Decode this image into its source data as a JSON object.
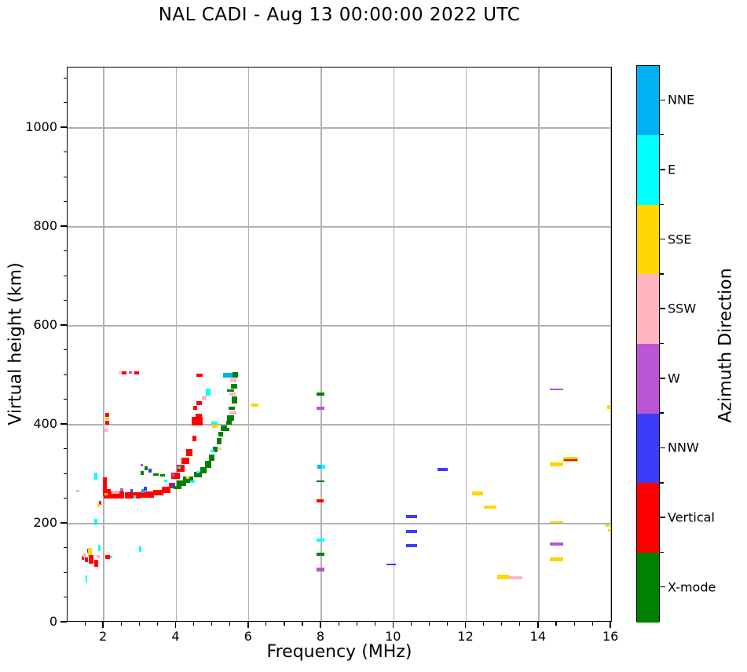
{
  "chart_data": {
    "type": "scatter",
    "title": "NAL CADI - Aug 13 00:00:00 2022 UTC",
    "xlabel": "Frequency (MHz)",
    "ylabel": "Virtual height (km)",
    "xlim": [
      1,
      16.04
    ],
    "ylim": [
      0,
      1125
    ],
    "x_major_ticks": [
      2,
      4,
      6,
      8,
      10,
      12,
      14,
      16
    ],
    "x_minor_step": 0.5,
    "y_major_ticks": [
      0,
      200,
      400,
      600,
      800,
      1000
    ],
    "y_minor_step": 50,
    "grid": true,
    "grid_color": "#b2b2b2",
    "colorbar": {
      "label": "Azimuth Direction",
      "categories_top_to_bottom": [
        {
          "key": "B",
          "name": "NNE",
          "color": "#00B2F2"
        },
        {
          "key": "C",
          "name": "E",
          "color": "#00FFFF"
        },
        {
          "key": "G",
          "name": "SSE",
          "color": "#FFD700"
        },
        {
          "key": "P",
          "name": "SSW",
          "color": "#FFB6C1"
        },
        {
          "key": "W",
          "name": "W",
          "color": "#BA55D3"
        },
        {
          "key": "N",
          "name": "NNW",
          "color": "#3C3CF8"
        },
        {
          "key": "V",
          "name": "Vertical",
          "color": "#FF0000"
        },
        {
          "key": "X",
          "name": "X-mode",
          "color": "#008000"
        }
      ]
    },
    "point_format": [
      "frequency_MHz_center",
      "virtual_height_km_center",
      "direction_key",
      "width_MHz",
      "thickness_km"
    ],
    "points": [
      [
        1.28,
        266,
        "P",
        0.1,
        6
      ],
      [
        1.42,
        131,
        "V",
        0.07,
        7
      ],
      [
        1.46,
        135,
        "P",
        0.09,
        8
      ],
      [
        1.52,
        127,
        "V",
        0.08,
        11
      ],
      [
        1.57,
        145,
        "N",
        0.07,
        8
      ],
      [
        1.62,
        143,
        "G",
        0.11,
        16
      ],
      [
        1.66,
        128,
        "V",
        0.13,
        18
      ],
      [
        1.8,
        120,
        "V",
        0.11,
        14
      ],
      [
        1.85,
        133,
        "P",
        0.09,
        6
      ],
      [
        1.88,
        151,
        "C",
        0.06,
        13
      ],
      [
        2.1,
        133,
        "V",
        0.12,
        8
      ],
      [
        2.21,
        133,
        "C",
        0.06,
        5
      ],
      [
        1.52,
        88,
        "C",
        0.06,
        14
      ],
      [
        1.9,
        242,
        "V",
        0.08,
        9
      ],
      [
        1.86,
        236,
        "G",
        0.07,
        6
      ],
      [
        3.0,
        149,
        "C",
        0.07,
        11
      ],
      [
        1.78,
        296,
        "C",
        0.07,
        14
      ],
      [
        1.78,
        203,
        "C",
        0.07,
        12
      ],
      [
        2.03,
        274,
        "V",
        0.1,
        38
      ],
      [
        2.1,
        262,
        "V",
        0.18,
        16
      ],
      [
        2.28,
        258,
        "V",
        0.55,
        15
      ],
      [
        2.8,
        257,
        "V",
        0.45,
        13
      ],
      [
        3.2,
        259,
        "V",
        0.35,
        12
      ],
      [
        3.5,
        263,
        "V",
        0.28,
        12
      ],
      [
        3.72,
        268,
        "V",
        0.22,
        12
      ],
      [
        3.88,
        277,
        "V",
        0.18,
        12
      ],
      [
        2.06,
        259,
        "G",
        0.07,
        5
      ],
      [
        2.33,
        264,
        "P",
        0.22,
        6
      ],
      [
        2.5,
        268,
        "W",
        0.08,
        7
      ],
      [
        2.77,
        266,
        "N",
        0.07,
        7
      ],
      [
        2.86,
        254,
        "C",
        0.07,
        6
      ],
      [
        3.08,
        266,
        "B",
        0.08,
        7
      ],
      [
        3.15,
        271,
        "N",
        0.08,
        7
      ],
      [
        3.97,
        297,
        "V",
        0.24,
        13
      ],
      [
        4.12,
        312,
        "V",
        0.22,
        14
      ],
      [
        4.25,
        327,
        "V",
        0.2,
        13
      ],
      [
        4.36,
        344,
        "V",
        0.18,
        14
      ],
      [
        4.5,
        372,
        "V",
        0.13,
        11
      ],
      [
        4.57,
        407,
        "V",
        0.3,
        17
      ],
      [
        4.62,
        418,
        "V",
        0.18,
        8
      ],
      [
        4.52,
        434,
        "V",
        0.1,
        9
      ],
      [
        4.63,
        443,
        "V",
        0.14,
        8
      ],
      [
        4.64,
        500,
        "V",
        0.16,
        7
      ],
      [
        4.77,
        454,
        "P",
        0.14,
        10
      ],
      [
        4.89,
        466,
        "C",
        0.13,
        15
      ],
      [
        4.07,
        313,
        "C",
        0.09,
        5
      ],
      [
        3.91,
        299,
        "W",
        0.07,
        6
      ],
      [
        3.9,
        278,
        "N",
        0.1,
        9
      ],
      [
        2.45,
        506,
        "P",
        0.1,
        5
      ],
      [
        2.55,
        505,
        "V",
        0.13,
        6
      ],
      [
        2.73,
        505,
        "W",
        0.08,
        5
      ],
      [
        2.91,
        505,
        "V",
        0.14,
        6
      ],
      [
        2.1,
        420,
        "V",
        0.1,
        8
      ],
      [
        2.1,
        412,
        "G",
        0.1,
        6
      ],
      [
        2.1,
        404,
        "V",
        0.1,
        7
      ],
      [
        2.07,
        389,
        "P",
        0.1,
        5
      ],
      [
        3.05,
        303,
        "X",
        0.09,
        8
      ],
      [
        3.16,
        312,
        "X",
        0.09,
        8
      ],
      [
        3.05,
        318,
        "W",
        0.08,
        5
      ],
      [
        3.27,
        307,
        "N",
        0.09,
        9
      ],
      [
        3.44,
        299,
        "X",
        0.16,
        5
      ],
      [
        3.62,
        297,
        "X",
        0.13,
        5
      ],
      [
        3.71,
        286,
        "C",
        0.07,
        5
      ],
      [
        4.03,
        273,
        "X",
        0.22,
        7
      ],
      [
        4.14,
        282,
        "X",
        0.26,
        10
      ],
      [
        4.33,
        289,
        "X",
        0.28,
        12
      ],
      [
        4.32,
        293,
        "G",
        0.09,
        5
      ],
      [
        4.45,
        285,
        "C",
        0.13,
        5
      ],
      [
        4.6,
        299,
        "X",
        0.22,
        12
      ],
      [
        4.6,
        304,
        "C",
        0.1,
        5
      ],
      [
        4.75,
        308,
        "X",
        0.18,
        12
      ],
      [
        4.88,
        320,
        "X",
        0.16,
        13
      ],
      [
        4.98,
        334,
        "X",
        0.15,
        13
      ],
      [
        5.08,
        350,
        "X",
        0.14,
        12
      ],
      [
        5.0,
        347,
        "C",
        0.09,
        5
      ],
      [
        5.2,
        351,
        "P",
        0.09,
        5
      ],
      [
        5.18,
        367,
        "X",
        0.14,
        13
      ],
      [
        5.23,
        381,
        "X",
        0.14,
        11
      ],
      [
        5.32,
        393,
        "X",
        0.18,
        11
      ],
      [
        5.38,
        391,
        "X",
        0.15,
        6
      ],
      [
        5.45,
        404,
        "X",
        0.15,
        9
      ],
      [
        5.05,
        404,
        "C",
        0.17,
        6
      ],
      [
        5.06,
        397,
        "G",
        0.16,
        6
      ],
      [
        5.5,
        414,
        "X",
        0.2,
        11
      ],
      [
        5.57,
        424,
        "P",
        0.2,
        7
      ],
      [
        5.53,
        433,
        "X",
        0.18,
        7
      ],
      [
        5.6,
        450,
        "X",
        0.15,
        13
      ],
      [
        5.55,
        462,
        "P",
        0.18,
        6
      ],
      [
        5.5,
        469,
        "X",
        0.2,
        6
      ],
      [
        5.6,
        478,
        "X",
        0.18,
        9
      ],
      [
        5.58,
        490,
        "P",
        0.18,
        8
      ],
      [
        5.42,
        500,
        "B",
        0.26,
        9
      ],
      [
        5.62,
        501,
        "X",
        0.15,
        10
      ],
      [
        6.17,
        440,
        "G",
        0.2,
        6
      ],
      [
        7.95,
        315,
        "B",
        0.1,
        7
      ],
      [
        8.05,
        315,
        "C",
        0.1,
        7
      ],
      [
        7.98,
        462,
        "X",
        0.2,
        7
      ],
      [
        7.98,
        433,
        "W",
        0.2,
        7
      ],
      [
        7.98,
        286,
        "X",
        0.2,
        4
      ],
      [
        7.97,
        246,
        "V",
        0.2,
        7
      ],
      [
        7.98,
        167,
        "C",
        0.2,
        7
      ],
      [
        7.98,
        138,
        "X",
        0.2,
        7
      ],
      [
        7.98,
        107,
        "W",
        0.2,
        7
      ],
      [
        9.93,
        118,
        "N",
        0.25,
        3
      ],
      [
        10.49,
        214,
        "N",
        0.3,
        7
      ],
      [
        10.49,
        184,
        "N",
        0.3,
        7
      ],
      [
        10.49,
        156,
        "N",
        0.3,
        7
      ],
      [
        11.35,
        310,
        "N",
        0.3,
        7
      ],
      [
        12.32,
        261,
        "G",
        0.3,
        7
      ],
      [
        12.66,
        233,
        "G",
        0.33,
        7
      ],
      [
        13.02,
        92,
        "G",
        0.34,
        9
      ],
      [
        13.37,
        90,
        "P",
        0.36,
        6
      ],
      [
        14.49,
        320,
        "G",
        0.38,
        7
      ],
      [
        14.88,
        330,
        "G",
        0.4,
        9
      ],
      [
        14.88,
        329,
        "V",
        0.36,
        3
      ],
      [
        14.49,
        203,
        "G",
        0.38,
        3
      ],
      [
        14.49,
        159,
        "W",
        0.38,
        7
      ],
      [
        14.49,
        128,
        "G",
        0.38,
        7
      ],
      [
        14.49,
        471,
        "W",
        0.38,
        3
      ],
      [
        15.93,
        436,
        "G",
        0.1,
        7
      ],
      [
        15.9,
        196,
        "G",
        0.12,
        6
      ],
      [
        15.95,
        186,
        "G",
        0.09,
        5
      ]
    ]
  }
}
